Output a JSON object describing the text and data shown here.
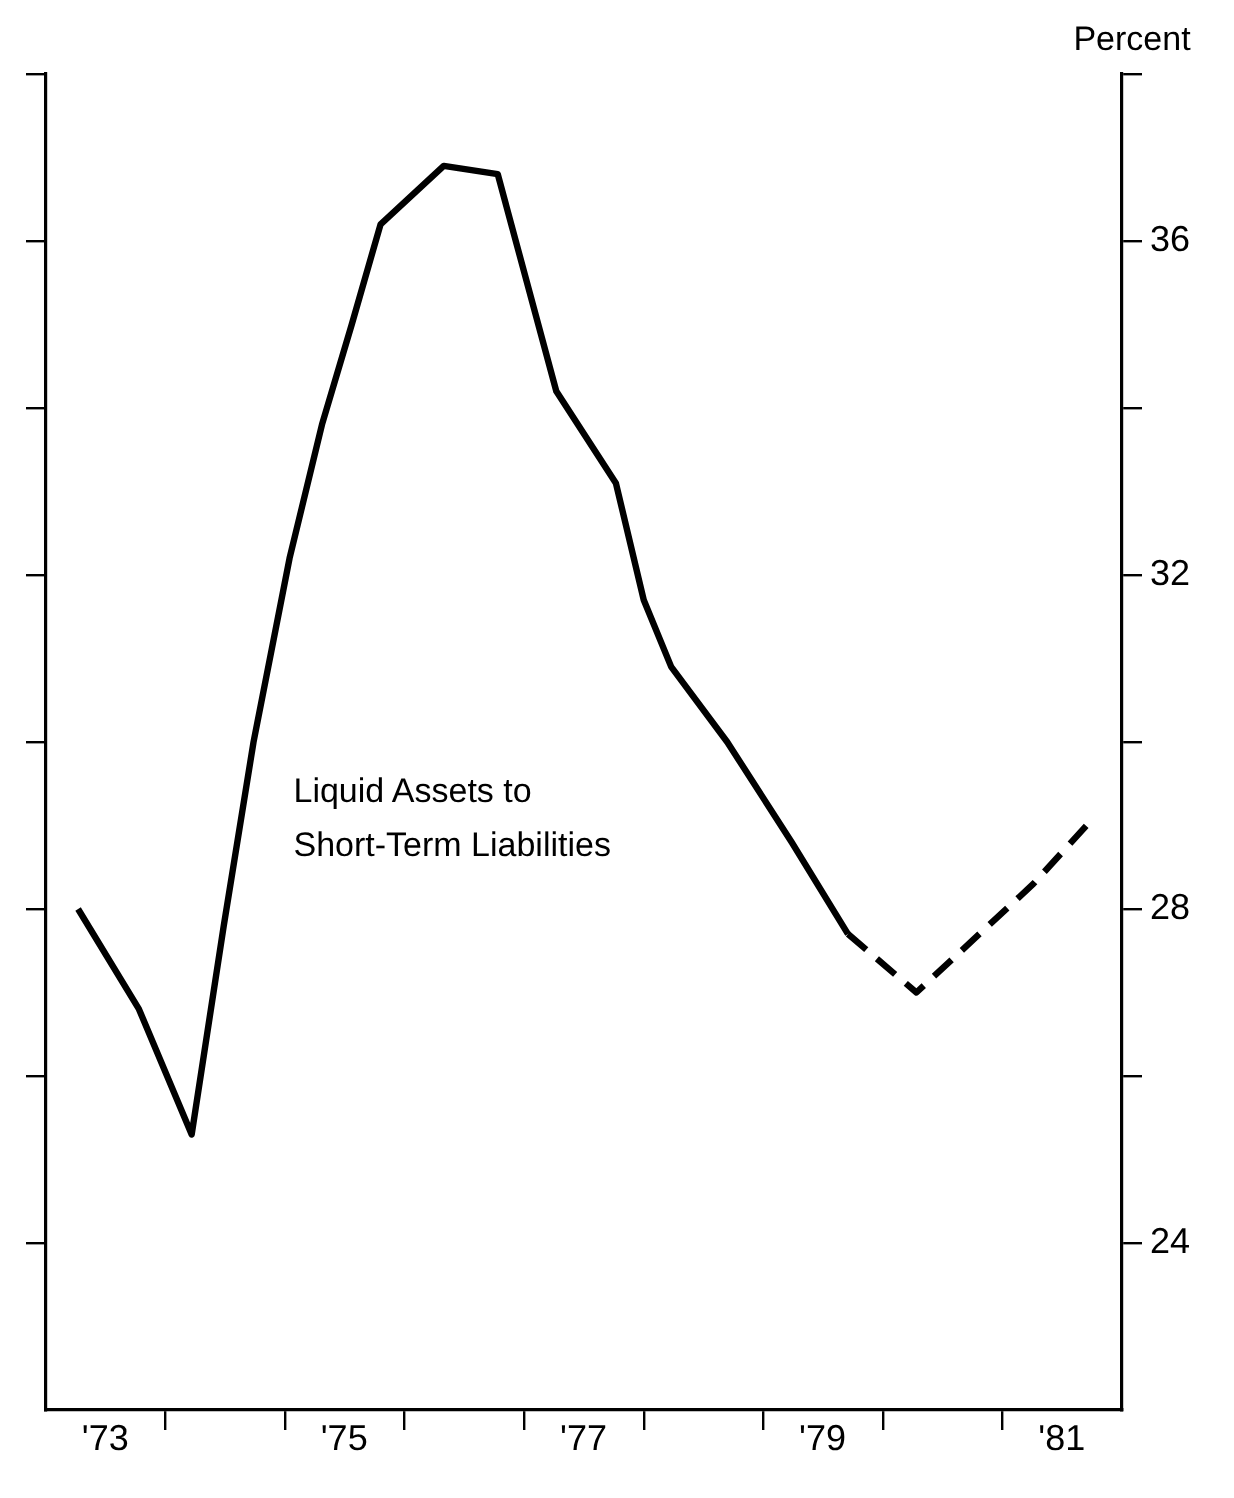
{
  "chart_data": {
    "type": "line",
    "ylabel": "Percent",
    "annotations": [
      "Liquid Assets to\nShort-Term Liabilities"
    ],
    "xlim": [
      "1973",
      "1982"
    ],
    "xticks": [
      {
        "value": "1973-07-01",
        "label": "'73"
      },
      {
        "value": "1974",
        "label": null
      },
      {
        "value": "1975",
        "label": null
      },
      {
        "value": "1975-07-01",
        "label": "'75"
      },
      {
        "value": "1976",
        "label": null
      },
      {
        "value": "1977",
        "label": null
      },
      {
        "value": "1977-07-01",
        "label": "'77"
      },
      {
        "value": "1978",
        "label": null
      },
      {
        "value": "1979",
        "label": null
      },
      {
        "value": "1979-07-01",
        "label": "'79"
      },
      {
        "value": "1980",
        "label": null
      },
      {
        "value": "1981",
        "label": null
      },
      {
        "value": "1981-07-01",
        "label": "'81"
      }
    ],
    "ylim": [
      22,
      38
    ],
    "yticks": [
      24,
      {
        "value": 26,
        "label": null
      },
      28,
      {
        "value": 30,
        "label": null
      },
      32,
      {
        "value": 34,
        "label": null
      },
      36,
      {
        "value": 38,
        "label": null
      }
    ],
    "marker": "none",
    "series": [
      {
        "color": "#000000",
        "line_style": "solid",
        "x": [
          "1973-04-09",
          "1973-10-12",
          "1974-03-22",
          "1974-06-28",
          "1974-09-27",
          "1975-01-15",
          "1975-04-24",
          "1975-07-24",
          "1975-10-20",
          "1976-04-30",
          "1976-10-12",
          "1977-04-09",
          "1977-10-08",
          "1978-01-01",
          "1978-03-26",
          "1978-09-13",
          "1979-03-29",
          "1979-09-17"
        ],
        "values": [
          28.0,
          26.8,
          25.3,
          27.8,
          30.0,
          32.2,
          33.8,
          35.0,
          36.2,
          36.9,
          36.8,
          34.2,
          33.1,
          31.7,
          30.9,
          30.0,
          28.8,
          27.7
        ]
      },
      {
        "color": "#000000",
        "line_style": "dashed",
        "x": [
          "1979-09-17",
          "1980-04-13",
          "1981-04-05",
          "1981-10-08"
        ],
        "values": [
          27.7,
          27.0,
          28.3,
          29.1
        ]
      }
    ]
  }
}
